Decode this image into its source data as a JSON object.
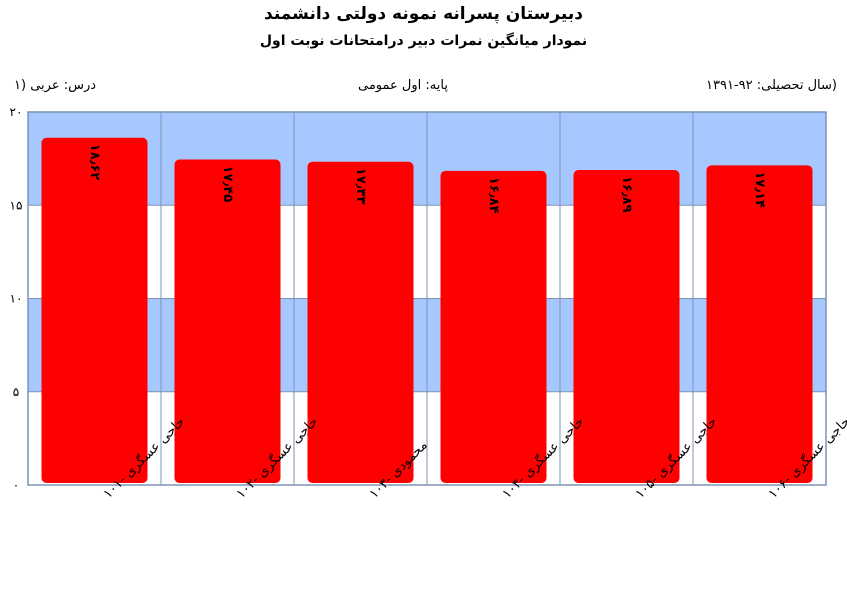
{
  "header": {
    "title": "دبیرستان پسرانه نمونه دولتی دانشمند",
    "subtitle": "نمودار میانگین نمرات دبیر درامتحانات نوبت اول",
    "course": "درس: عربی (۱",
    "grade": "پایه: اول عمومی",
    "year": "(سال تحصیلی: ۹۲-۱۳۹۱"
  },
  "colors": {
    "bar": "#ff0000",
    "band_blue": "#a7c7ff",
    "band_white": "#ffffff",
    "grid": "#7f93b3"
  },
  "chart_data": {
    "type": "bar",
    "categories": [
      "حاجی عسگری -۱۰۱",
      "حاجی عسگری -۱۰۲",
      "محمودی -۱۰۳",
      "حاجی عسگری -۱۰۴",
      "حاجی عسگری -۱۰۵",
      "حاجی عسگری -۱۰۶"
    ],
    "values": [
      18.62,
      17.45,
      17.33,
      16.84,
      16.89,
      17.14
    ],
    "data_labels": [
      "۱۸٫۶۲",
      "۱۷٫۴۵",
      "۱۷٫۳۳",
      "۱۶٫۸۴",
      "۱۶٫۸۹",
      "۱۷٫۱۴"
    ],
    "ylim": [
      0,
      20
    ],
    "yticks": [
      0,
      5,
      10,
      15,
      20
    ],
    "ytick_labels": [
      "۰",
      "۵",
      "۱۰",
      "۱۵",
      "۲۰"
    ],
    "grid": true,
    "banded_background": true
  }
}
